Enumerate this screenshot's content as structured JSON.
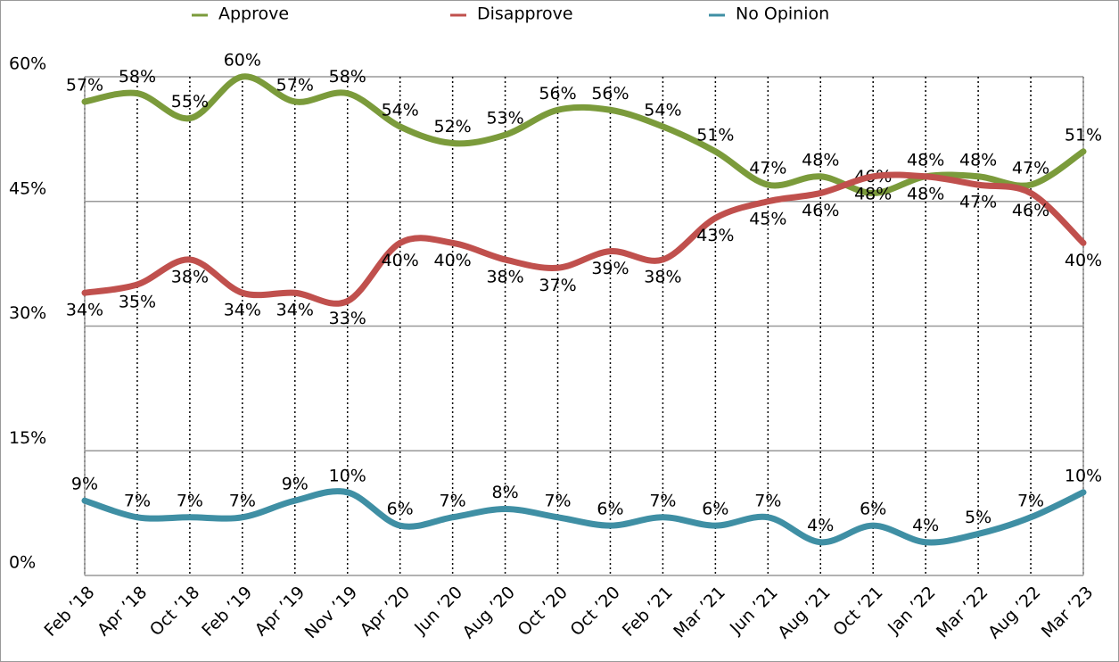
{
  "chart_data": {
    "type": "line",
    "categories": [
      "Feb ’18",
      "Apr ’18",
      "Oct ’18",
      "Feb ’19",
      "Apr ’19",
      "Nov ’19",
      "Apr ’20",
      "Jun ’20",
      "Aug ’20",
      "Oct ’20",
      "Oct ’20",
      "Feb ’21",
      "Mar ’21",
      "Jun ’21",
      "Aug ’21",
      "Oct ’21",
      "Jan ’22",
      "Mar ’22",
      "Aug ’22",
      "Mar ’23"
    ],
    "series": [
      {
        "name": "Approve",
        "color": "#7b9b3b",
        "values": [
          57,
          58,
          55,
          60,
          57,
          58,
          54,
          52,
          53,
          56,
          56,
          54,
          51,
          47,
          48,
          46,
          48,
          48,
          47,
          51
        ],
        "value_labels": [
          "57%",
          "58%",
          "55%",
          "60%",
          "57%",
          "58%",
          "54%",
          "52%",
          "53%",
          "56%",
          "56%",
          "54%",
          "51%",
          "47%",
          "48%",
          "46%",
          "48%",
          "48%",
          "47%",
          "51%"
        ]
      },
      {
        "name": "Disapprove",
        "color": "#c0504d",
        "values": [
          34,
          35,
          38,
          34,
          34,
          33,
          40,
          40,
          38,
          37,
          39,
          38,
          43,
          45,
          46,
          48,
          48,
          47,
          46,
          40
        ],
        "value_labels": [
          "34%",
          "35%",
          "38%",
          "34%",
          "34%",
          "33%",
          "40%",
          "40%",
          "38%",
          "37%",
          "39%",
          "38%",
          "43%",
          "45%",
          "46%",
          "48%",
          "48%",
          "47%",
          "46%",
          "40%"
        ]
      },
      {
        "name": "No Opinion",
        "color": "#3f8fa4",
        "values": [
          9,
          7,
          7,
          7,
          9,
          10,
          6,
          7,
          8,
          7,
          6,
          7,
          6,
          7,
          4,
          6,
          4,
          5,
          7,
          10
        ],
        "value_labels": [
          "9%",
          "7%",
          "7%",
          "7%",
          "9%",
          "10%",
          "6%",
          "7%",
          "8%",
          "7%",
          "6%",
          "7%",
          "6%",
          "7%",
          "4%",
          "6%",
          "4%",
          "5%",
          "7%",
          "10%"
        ]
      }
    ],
    "ylim": [
      0,
      60
    ],
    "yticks": [
      {
        "value": 0,
        "label": "0%"
      },
      {
        "value": 15,
        "label": "15%"
      },
      {
        "value": 30,
        "label": "30%"
      },
      {
        "value": 45,
        "label": "45%"
      },
      {
        "value": 60,
        "label": "60%"
      }
    ],
    "grid": true,
    "legend": "top"
  }
}
